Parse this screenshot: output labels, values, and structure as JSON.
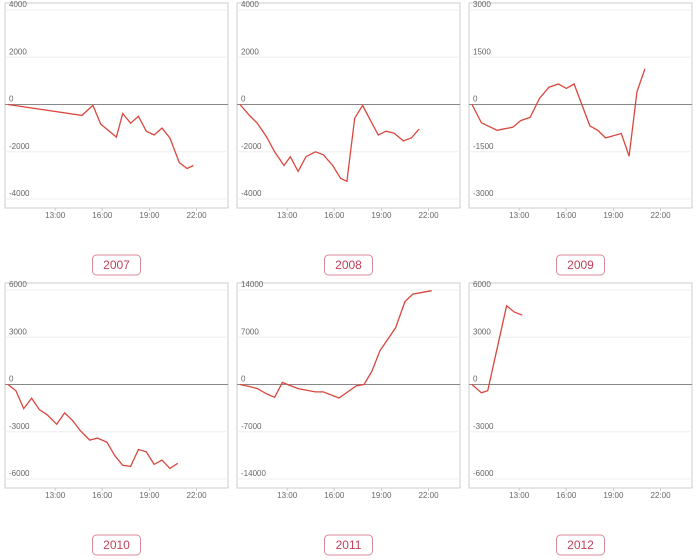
{
  "chart_data": [
    {
      "type": "line",
      "title": "2007",
      "color": "#d9473d",
      "grid": true,
      "x": [
        10,
        14.7,
        15.4,
        15.9,
        16.9,
        17.3,
        17.8,
        18.3,
        18.8,
        19.3,
        19.8,
        20.3,
        20.9,
        21.4,
        21.8
      ],
      "values": [
        0,
        -460,
        -40,
        -830,
        -1380,
        -380,
        -790,
        -500,
        -1130,
        -1290,
        -1000,
        -1420,
        -2460,
        -2710,
        -2580
      ],
      "xlim": [
        10,
        24
      ],
      "xticks": [
        {
          "value": 13,
          "label": "13:00"
        },
        {
          "value": 16,
          "label": "16:00"
        },
        {
          "value": 19,
          "label": "19:00"
        },
        {
          "value": 22,
          "label": "22:00"
        }
      ],
      "ylim": [
        -4000,
        4000
      ],
      "yticks": [
        -4000,
        -2000,
        0,
        2000,
        4000
      ]
    },
    {
      "type": "line",
      "title": "2008",
      "color": "#d9473d",
      "grid": true,
      "x": [
        10,
        10.6,
        11.1,
        11.7,
        12.2,
        12.8,
        13.2,
        13.7,
        14.2,
        14.8,
        15.3,
        15.9,
        16.4,
        16.8,
        17.3,
        17.8,
        18.3,
        18.8,
        19.3,
        19.8,
        20.4,
        20.9,
        21.4
      ],
      "values": [
        0,
        -460,
        -790,
        -1380,
        -2000,
        -2580,
        -2210,
        -2830,
        -2210,
        -2000,
        -2130,
        -2580,
        -3130,
        -3250,
        -580,
        -40,
        -670,
        -1290,
        -1130,
        -1210,
        -1540,
        -1420,
        -1040
      ],
      "xlim": [
        10,
        24
      ],
      "xticks": [
        {
          "value": 13,
          "label": "13:00"
        },
        {
          "value": 16,
          "label": "16:00"
        },
        {
          "value": 19,
          "label": "19:00"
        },
        {
          "value": 22,
          "label": "22:00"
        }
      ],
      "ylim": [
        -4000,
        4000
      ],
      "yticks": [
        -4000,
        -2000,
        0,
        2000,
        4000
      ]
    },
    {
      "type": "line",
      "title": "2009",
      "color": "#d9473d",
      "grid": true,
      "x": [
        10,
        10.6,
        11.6,
        12.6,
        13.1,
        13.7,
        14.3,
        14.9,
        15.5,
        16,
        16.5,
        17.5,
        18,
        18.5,
        19,
        19.5,
        20,
        20.5,
        21
      ],
      "values": [
        0,
        -580,
        -820,
        -720,
        -510,
        -410,
        200,
        550,
        650,
        510,
        650,
        -680,
        -820,
        -1060,
        -990,
        -920,
        -1640,
        410,
        1130
      ],
      "xlim": [
        10,
        24
      ],
      "xticks": [
        {
          "value": 13,
          "label": "13:00"
        },
        {
          "value": 16,
          "label": "16:00"
        },
        {
          "value": 19,
          "label": "19:00"
        },
        {
          "value": 22,
          "label": "22:00"
        }
      ],
      "ylim": [
        -3000,
        3000
      ],
      "yticks": [
        -3000,
        -1500,
        0,
        1500,
        3000
      ]
    },
    {
      "type": "line",
      "title": "2010",
      "color": "#d9473d",
      "grid": true,
      "x": [
        10,
        10.5,
        11,
        11.5,
        12,
        12.5,
        13.1,
        13.6,
        14.1,
        14.6,
        15.2,
        15.7,
        16.3,
        16.8,
        17.3,
        17.8,
        18.3,
        18.8,
        19.3,
        19.8,
        20.3,
        20.8
      ],
      "values": [
        0,
        -400,
        -1530,
        -870,
        -1600,
        -1930,
        -2530,
        -1800,
        -2270,
        -2930,
        -3530,
        -3400,
        -3670,
        -4530,
        -5130,
        -5200,
        -4130,
        -4270,
        -5070,
        -4800,
        -5330,
        -5000
      ],
      "xlim": [
        10,
        24
      ],
      "xticks": [
        {
          "value": 13,
          "label": "13:00"
        },
        {
          "value": 16,
          "label": "16:00"
        },
        {
          "value": 19,
          "label": "19:00"
        },
        {
          "value": 22,
          "label": "22:00"
        }
      ],
      "ylim": [
        -6000,
        6000
      ],
      "yticks": [
        -6000,
        -3000,
        0,
        3000,
        6000
      ]
    },
    {
      "type": "line",
      "title": "2011",
      "color": "#d9473d",
      "grid": true,
      "x": [
        10,
        10.6,
        11.1,
        11.7,
        12.2,
        12.7,
        13.7,
        14.8,
        15.3,
        16.3,
        17.4,
        17.9,
        18.4,
        18.9,
        19.9,
        20.5,
        21,
        21.5,
        22.2
      ],
      "values": [
        0,
        -300,
        -600,
        -1400,
        -1900,
        300,
        -600,
        -1100,
        -1100,
        -2000,
        -200,
        0,
        2000,
        5000,
        8400,
        12300,
        13400,
        13600,
        13900
      ],
      "xlim": [
        10,
        24
      ],
      "xticks": [
        {
          "value": 13,
          "label": "13:00"
        },
        {
          "value": 16,
          "label": "16:00"
        },
        {
          "value": 19,
          "label": "19:00"
        },
        {
          "value": 22,
          "label": "22:00"
        }
      ],
      "ylim": [
        -14000,
        14000
      ],
      "yticks": [
        -14000,
        -7000,
        0,
        7000,
        14000
      ]
    },
    {
      "type": "line",
      "title": "2012",
      "color": "#d9473d",
      "grid": true,
      "x": [
        10,
        10.6,
        11,
        12.2,
        12.7,
        13.2
      ],
      "values": [
        0,
        -530,
        -400,
        5000,
        4600,
        4400
      ],
      "xlim": [
        10,
        24
      ],
      "xticks": [
        {
          "value": 13,
          "label": "13:00"
        },
        {
          "value": 16,
          "label": "16:00"
        },
        {
          "value": 19,
          "label": "19:00"
        },
        {
          "value": 22,
          "label": "22:00"
        }
      ],
      "ylim": [
        -6000,
        6000
      ],
      "yticks": [
        -6000,
        -3000,
        0,
        3000,
        6000
      ]
    }
  ]
}
